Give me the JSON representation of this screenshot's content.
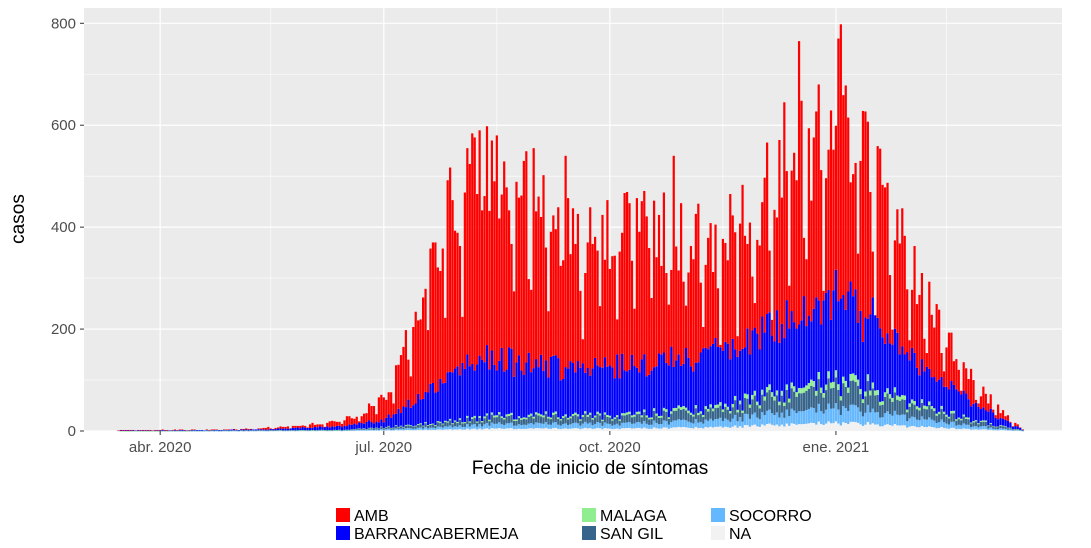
{
  "chart_data": {
    "type": "bar",
    "stacked": true,
    "title": "",
    "xlabel": "Fecha de inicio de síntomas",
    "ylabel": "casos",
    "ylim": [
      0,
      830
    ],
    "xlim": [
      "2020-03-01",
      "2021-04-03"
    ],
    "y_ticks": [
      0,
      200,
      400,
      600,
      800
    ],
    "x_ticks": [
      {
        "date": "2020-04-01",
        "label": "abr. 2020"
      },
      {
        "date": "2020-07-01",
        "label": "jul. 2020"
      },
      {
        "date": "2020-10-01",
        "label": "oct. 2020"
      },
      {
        "date": "2021-01-01",
        "label": "ene. 2021"
      }
    ],
    "grid": true,
    "legend_position": "bottom",
    "series": [
      {
        "name": "AMB",
        "color": "#ff0000"
      },
      {
        "name": "BARRANCABERMEJA",
        "color": "#0000ff"
      },
      {
        "name": "MALAGA",
        "color": "#90ee90"
      },
      {
        "name": "SAN GIL",
        "color": "#36648b"
      },
      {
        "name": "SOCORRO",
        "color": "#63b8ff"
      },
      {
        "name": "NA",
        "color": "#f2f2f2"
      }
    ],
    "total_keyframes": [
      [
        "2020-03-15",
        2
      ],
      [
        "2020-04-30",
        3
      ],
      [
        "2020-05-20",
        8
      ],
      [
        "2020-06-05",
        15
      ],
      [
        "2020-06-20",
        30
      ],
      [
        "2020-07-01",
        65
      ],
      [
        "2020-07-06",
        110
      ],
      [
        "2020-07-12",
        210
      ],
      [
        "2020-07-20",
        330
      ],
      [
        "2020-07-27",
        440
      ],
      [
        "2020-08-05",
        510
      ],
      [
        "2020-08-15",
        520
      ],
      [
        "2020-08-25",
        480
      ],
      [
        "2020-09-05",
        420
      ],
      [
        "2020-09-20",
        370
      ],
      [
        "2020-10-01",
        380
      ],
      [
        "2020-10-15",
        420
      ],
      [
        "2020-11-01",
        380
      ],
      [
        "2020-11-15",
        380
      ],
      [
        "2020-12-01",
        450
      ],
      [
        "2020-12-15",
        560
      ],
      [
        "2020-12-25",
        560
      ],
      [
        "2021-01-05",
        600
      ],
      [
        "2021-01-12",
        540
      ],
      [
        "2021-01-20",
        480
      ],
      [
        "2021-01-28",
        370
      ],
      [
        "2021-02-05",
        290
      ],
      [
        "2021-02-12",
        220
      ],
      [
        "2021-02-20",
        150
      ],
      [
        "2021-02-28",
        85
      ],
      [
        "2021-03-07",
        50
      ],
      [
        "2021-03-14",
        20
      ],
      [
        "2021-03-18",
        3
      ]
    ],
    "blue_keyframes": [
      [
        "2020-03-15",
        1
      ],
      [
        "2020-05-15",
        2
      ],
      [
        "2020-06-15",
        8
      ],
      [
        "2020-07-01",
        15
      ],
      [
        "2020-07-15",
        50
      ],
      [
        "2020-08-01",
        100
      ],
      [
        "2020-08-15",
        110
      ],
      [
        "2020-09-15",
        95
      ],
      [
        "2020-10-15",
        100
      ],
      [
        "2020-11-15",
        110
      ],
      [
        "2020-12-01",
        115
      ],
      [
        "2020-12-15",
        140
      ],
      [
        "2021-01-01",
        160
      ],
      [
        "2021-01-15",
        140
      ],
      [
        "2021-02-01",
        90
      ],
      [
        "2021-02-15",
        55
      ],
      [
        "2021-03-01",
        30
      ],
      [
        "2021-03-10",
        15
      ],
      [
        "2021-03-18",
        2
      ]
    ],
    "other_keyframes": [
      [
        "2020-03-15",
        0
      ],
      [
        "2020-06-15",
        2
      ],
      [
        "2020-07-15",
        12
      ],
      [
        "2020-08-15",
        30
      ],
      [
        "2020-10-01",
        30
      ],
      [
        "2020-11-15",
        45
      ],
      [
        "2020-12-15",
        85
      ],
      [
        "2021-01-01",
        95
      ],
      [
        "2021-01-15",
        85
      ],
      [
        "2021-02-01",
        55
      ],
      [
        "2021-02-15",
        35
      ],
      [
        "2021-03-01",
        18
      ],
      [
        "2021-03-18",
        1
      ]
    ],
    "spikes": [
      {
        "date": "2020-08-09",
        "value": 590
      },
      {
        "date": "2020-08-12",
        "value": 598
      },
      {
        "date": "2020-08-16",
        "value": 580
      },
      {
        "date": "2020-08-31",
        "value": 555
      },
      {
        "date": "2020-09-13",
        "value": 540
      },
      {
        "date": "2020-10-27",
        "value": 540
      },
      {
        "date": "2020-12-11",
        "value": 645
      },
      {
        "date": "2020-12-17",
        "value": 765
      },
      {
        "date": "2020-12-25",
        "value": 680
      },
      {
        "date": "2021-01-02",
        "value": 770
      },
      {
        "date": "2021-01-03",
        "value": 798
      },
      {
        "date": "2021-01-06",
        "value": 615
      }
    ]
  }
}
